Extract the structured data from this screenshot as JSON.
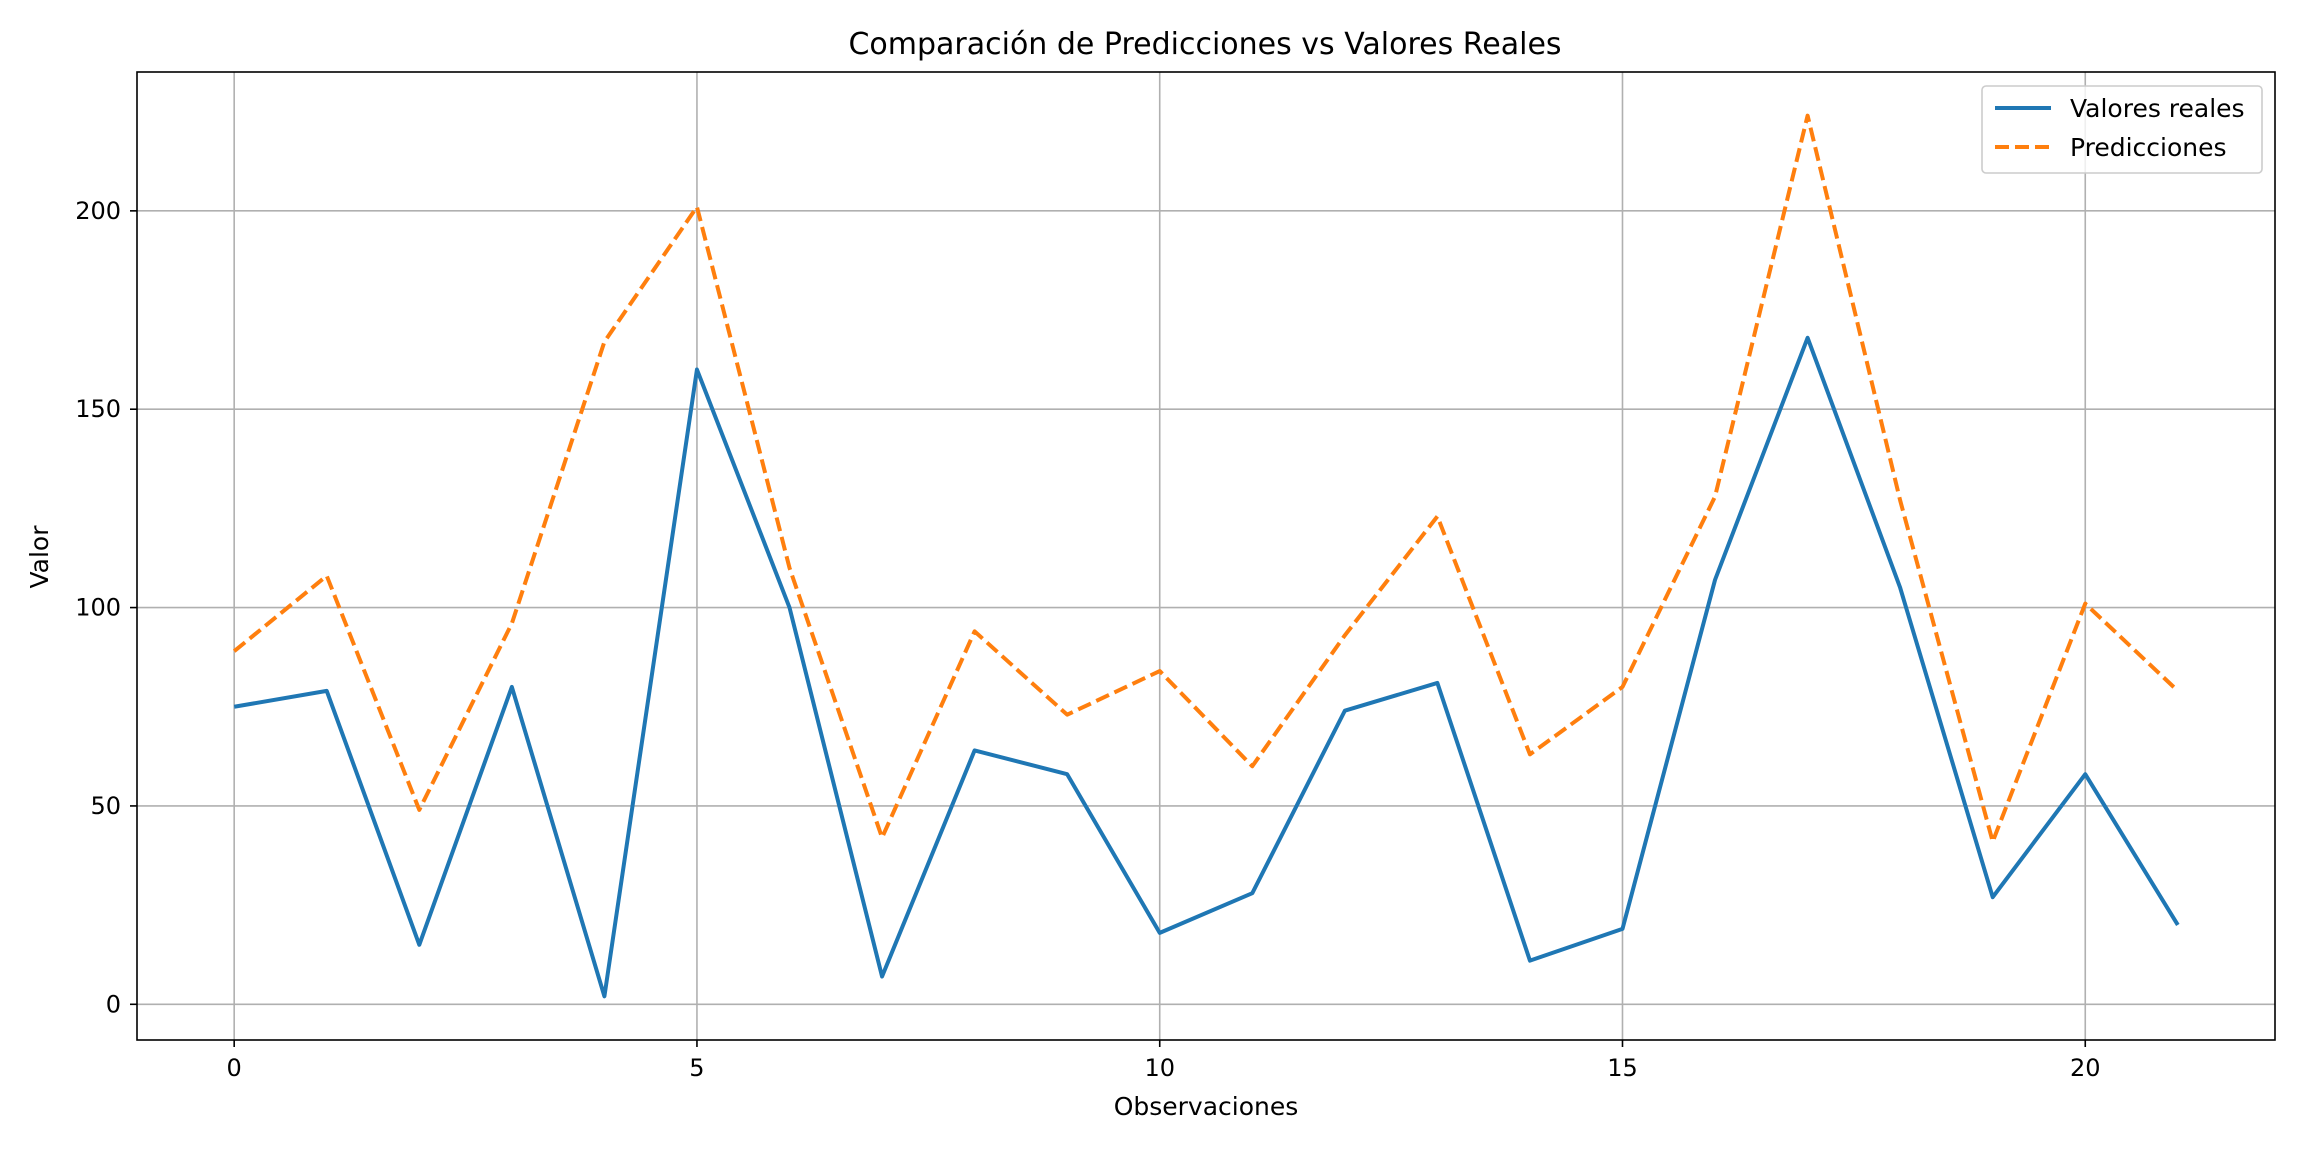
{
  "chart_data": {
    "type": "line",
    "title": "Comparación de Predicciones vs Valores Reales",
    "xlabel": "Observaciones",
    "ylabel": "Valor",
    "xlim": [
      -1.05,
      22.05
    ],
    "ylim": [
      -9,
      235
    ],
    "xticks": [
      0,
      5,
      10,
      15,
      20
    ],
    "yticks": [
      0,
      50,
      100,
      150,
      200
    ],
    "grid": true,
    "legend_position": "top-right",
    "x": [
      0,
      1,
      2,
      3,
      4,
      5,
      6,
      7,
      8,
      9,
      10,
      11,
      12,
      13,
      14,
      15,
      16,
      17,
      18,
      19,
      20,
      21
    ],
    "series": [
      {
        "name": "Valores reales",
        "color": "#1f77b4",
        "style": "solid",
        "values": [
          75,
          79,
          15,
          80,
          2,
          160,
          100,
          7,
          64,
          58,
          18,
          28,
          74,
          81,
          11,
          19,
          107,
          168,
          105,
          27,
          58,
          20
        ]
      },
      {
        "name": "Predicciones",
        "color": "#ff7f0e",
        "style": "dashed",
        "values": [
          89,
          108,
          49,
          96,
          167,
          201,
          110,
          42,
          94,
          73,
          84,
          60,
          93,
          123,
          63,
          80,
          128,
          224,
          127,
          41,
          101,
          79
        ]
      }
    ]
  }
}
